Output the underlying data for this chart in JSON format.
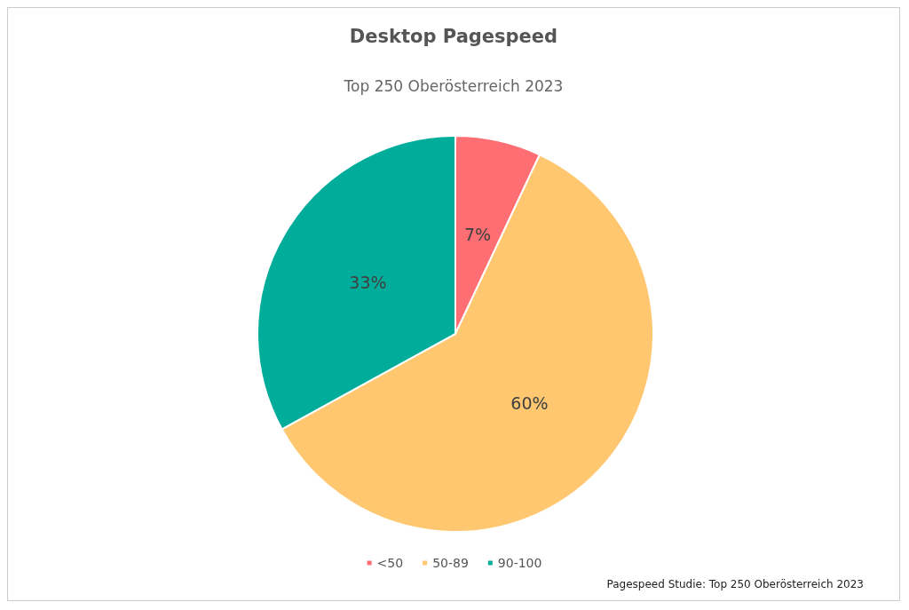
{
  "chart_data": {
    "type": "pie",
    "title": "Desktop Pagespeed",
    "subtitle": "Top 250 Oberösterreich 2023",
    "categories": [
      "<50",
      "50-89",
      "90-100"
    ],
    "values": [
      7,
      60,
      33
    ],
    "colors": [
      "#ff6e72",
      "#ffc870",
      "#00ad9a"
    ],
    "value_labels": [
      "7%",
      "60%",
      "33%"
    ],
    "legend": "bottom",
    "annotations": [
      "Pagespeed Studie: Top 250 Oberösterreich 2023"
    ]
  }
}
